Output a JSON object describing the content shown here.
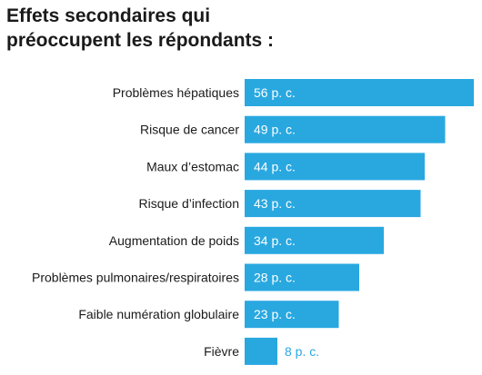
{
  "chart_data": {
    "type": "bar",
    "orientation": "horizontal",
    "title_lines": [
      "Effets secondaires qui",
      "préoccupent les répondants :"
    ],
    "categories": [
      "Problèmes hépatiques",
      "Risque de cancer",
      "Maux d’estomac",
      "Risque d’infection",
      "Augmentation de poids",
      "Problèmes pulmonaires/respiratoires",
      "Faible numération globulaire",
      "Fièvre"
    ],
    "values": [
      56,
      49,
      44,
      43,
      34,
      28,
      23,
      8
    ],
    "value_labels": [
      "56 p. c.",
      "49 p. c.",
      "44 p. c.",
      "43 p. c.",
      "34 p. c.",
      "28 p. c.",
      "23 p. c.",
      "8 p. c."
    ],
    "unit": "p. c.",
    "bar_color": "#29a8e0",
    "inside_label_color": "#ffffff",
    "outside_label_color": "#29a8e0",
    "xlim": [
      0,
      56
    ],
    "grid": false,
    "legend": "none"
  }
}
